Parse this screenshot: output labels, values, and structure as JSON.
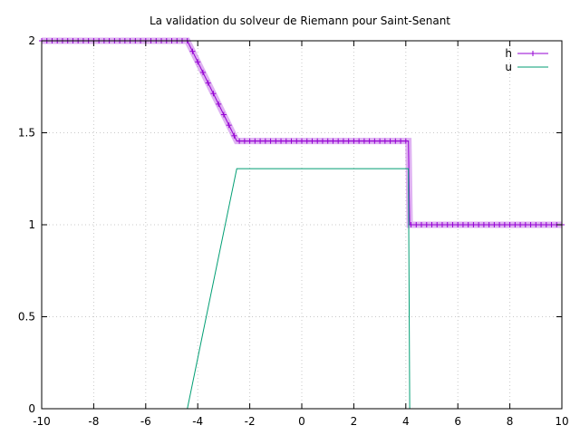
{
  "chart_data": {
    "type": "line",
    "title": "La validation du solveur de Riemann pour Saint-Senant",
    "xlim": [
      -10,
      10
    ],
    "ylim": [
      0,
      2
    ],
    "x_ticks": [
      -10,
      -8,
      -6,
      -4,
      -2,
      0,
      2,
      4,
      6,
      8,
      10
    ],
    "y_ticks": [
      0,
      0.5,
      1,
      1.5,
      2
    ],
    "x_tick_labels": [
      "-10",
      "-8",
      "-6",
      "-4",
      "-2",
      "0",
      "2",
      "4",
      "6",
      "8",
      "10"
    ],
    "y_tick_labels": [
      "0",
      "0.5",
      "1",
      "1.5",
      "2"
    ],
    "grid": true,
    "legend_position": "top-right",
    "series": [
      {
        "name": "h",
        "color": "#9400d3",
        "marker": "plus",
        "points": [
          [
            -10,
            2.0
          ],
          [
            -4.4,
            2.0
          ],
          [
            -2.5,
            1.455
          ],
          [
            4.1,
            1.455
          ],
          [
            4.15,
            1.0
          ],
          [
            10,
            1.0
          ]
        ]
      },
      {
        "name": "u",
        "color": "#009e73",
        "marker": "none",
        "points": [
          [
            -10,
            0.0
          ],
          [
            -4.4,
            0.0
          ],
          [
            -2.5,
            1.305
          ],
          [
            4.1,
            1.305
          ],
          [
            4.15,
            0.0
          ],
          [
            10,
            0.0
          ]
        ]
      }
    ]
  }
}
